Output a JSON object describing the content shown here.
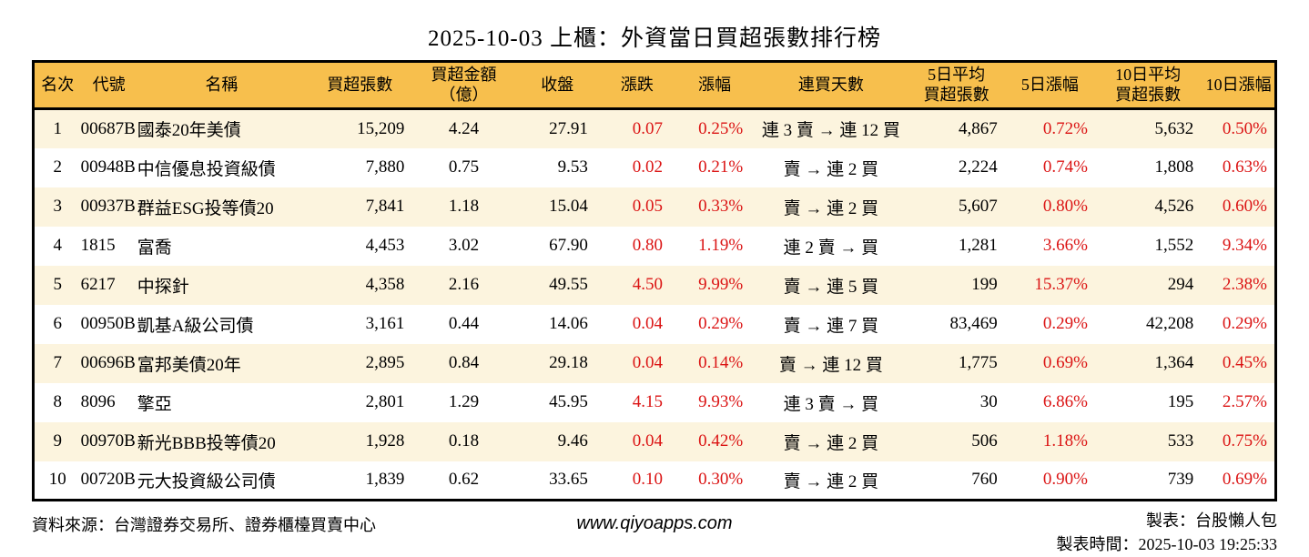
{
  "title": "2025-10-03 上櫃：外資當日買超張數排行榜",
  "colors": {
    "header_bg": "#F7BF4D",
    "row_stripe_bg": "#FCF4DE",
    "value_red": "#DB1414",
    "text": "#000000",
    "border": "#000000"
  },
  "table": {
    "headers": [
      "名次",
      "代號",
      "名稱",
      "買超張數",
      "買超金額\n（億）",
      "收盤",
      "漲跌",
      "漲幅",
      "連買天數",
      "5日平均\n買超張數",
      "5日漲幅",
      "10日平均\n買超張數",
      "10日漲幅"
    ],
    "column_keys": [
      "rank",
      "code",
      "name",
      "net-buy-volume",
      "net-buy-amount",
      "close",
      "change",
      "change-percent",
      "consecutive-buy-days",
      "avg5-net-buy-volume",
      "change-5d-percent",
      "avg10-net-buy-volume",
      "change-10d-percent"
    ],
    "rows": [
      [
        "1",
        "00687B",
        "國泰20年美債",
        "15,209",
        "4.24",
        "27.91",
        "0.07",
        "0.25%",
        "連 3 賣 → 連 12 買",
        "4,867",
        "0.72%",
        "5,632",
        "0.50%"
      ],
      [
        "2",
        "00948B",
        "中信優息投資級債",
        "7,880",
        "0.75",
        "9.53",
        "0.02",
        "0.21%",
        "賣 → 連 2 買",
        "2,224",
        "0.74%",
        "1,808",
        "0.63%"
      ],
      [
        "3",
        "00937B",
        "群益ESG投等債20",
        "7,841",
        "1.18",
        "15.04",
        "0.05",
        "0.33%",
        "賣 → 連 2 買",
        "5,607",
        "0.80%",
        "4,526",
        "0.60%"
      ],
      [
        "4",
        "1815",
        "富喬",
        "4,453",
        "3.02",
        "67.90",
        "0.80",
        "1.19%",
        "連 2 賣 → 買",
        "1,281",
        "3.66%",
        "1,552",
        "9.34%"
      ],
      [
        "5",
        "6217",
        "中探針",
        "4,358",
        "2.16",
        "49.55",
        "4.50",
        "9.99%",
        "賣 → 連 5 買",
        "199",
        "15.37%",
        "294",
        "2.38%"
      ],
      [
        "6",
        "00950B",
        "凱基A級公司債",
        "3,161",
        "0.44",
        "14.06",
        "0.04",
        "0.29%",
        "賣 → 連 7 買",
        "83,469",
        "0.29%",
        "42,208",
        "0.29%"
      ],
      [
        "7",
        "00696B",
        "富邦美債20年",
        "2,895",
        "0.84",
        "29.18",
        "0.04",
        "0.14%",
        "賣 → 連 12 買",
        "1,775",
        "0.69%",
        "1,364",
        "0.45%"
      ],
      [
        "8",
        "8096",
        "擎亞",
        "2,801",
        "1.29",
        "45.95",
        "4.15",
        "9.93%",
        "連 3 賣 → 買",
        "30",
        "6.86%",
        "195",
        "2.57%"
      ],
      [
        "9",
        "00970B",
        "新光BBB投等債20",
        "1,928",
        "0.18",
        "9.46",
        "0.04",
        "0.42%",
        "賣 → 連 2 買",
        "506",
        "1.18%",
        "533",
        "0.75%"
      ],
      [
        "10",
        "00720B",
        "元大投資級公司債",
        "1,839",
        "0.62",
        "33.65",
        "0.10",
        "0.30%",
        "賣 → 連 2 買",
        "760",
        "0.90%",
        "739",
        "0.69%"
      ]
    ]
  },
  "footer": {
    "source": "資料來源：台灣證券交易所、證券櫃檯買賣中心",
    "website": "www.qiyoapps.com",
    "creator": "製表：台股懶人包",
    "created_at": "製表時間：2025-10-03 19:25:33"
  }
}
